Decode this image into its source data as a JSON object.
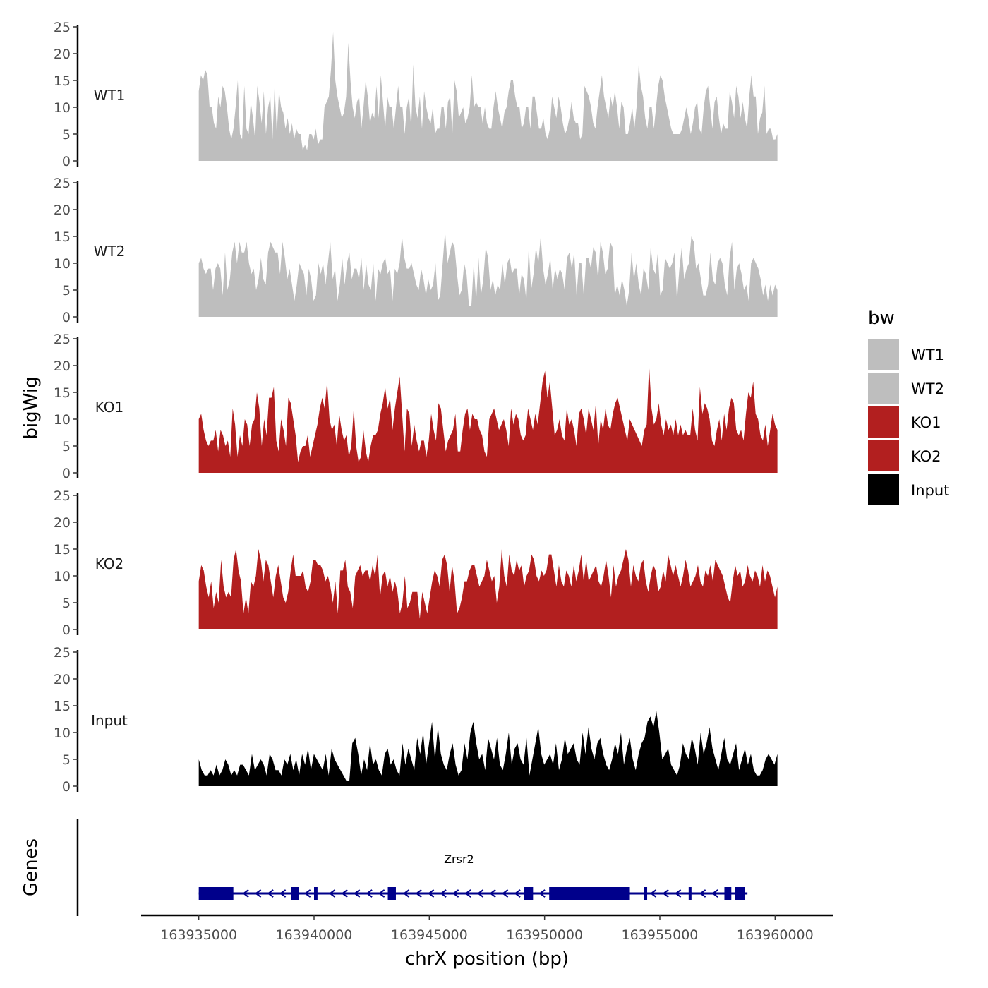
{
  "chart_data": {
    "type": "area",
    "chromosome": "chrX",
    "ylabel": "bigWig",
    "xlabel": "chrX position (bp)",
    "genes_label": "Genes",
    "ylim": [
      0,
      25
    ],
    "yticks": [
      "0",
      "5",
      "10",
      "15",
      "20",
      "25"
    ],
    "xlim": [
      163932500,
      163962500
    ],
    "xticks": [
      {
        "value": 163935000,
        "label": "163935000"
      },
      {
        "value": 163940000,
        "label": "163940000"
      },
      {
        "value": 163945000,
        "label": "163945000"
      },
      {
        "value": 163950000,
        "label": "163950000"
      },
      {
        "value": 163955000,
        "label": "163955000"
      },
      {
        "value": 163960000,
        "label": "163960000"
      }
    ],
    "region": [
      163935000,
      163960100
    ],
    "legend": {
      "title": "bw",
      "entries": [
        {
          "label": "WT1",
          "color": "#bebebe"
        },
        {
          "label": "WT2",
          "color": "#bebebe"
        },
        {
          "label": "KO1",
          "color": "#b21f1f"
        },
        {
          "label": "KO2",
          "color": "#b21f1f"
        },
        {
          "label": "Input",
          "color": "#000000"
        }
      ]
    },
    "series": [
      {
        "name": "WT1",
        "color": "#bebebe",
        "values": [
          13,
          16,
          15,
          17,
          16,
          10,
          10,
          7,
          6,
          12,
          10,
          14,
          13,
          10,
          6,
          4,
          6,
          10,
          15,
          5,
          4,
          14,
          6,
          5,
          11,
          8,
          4,
          14,
          11,
          7,
          13,
          5,
          10,
          12,
          4,
          14,
          5,
          13,
          10,
          9,
          6,
          8,
          5,
          7,
          4,
          6,
          5,
          5,
          2,
          3,
          2,
          5,
          5,
          4,
          6,
          3,
          4,
          4,
          10,
          11,
          12,
          17,
          24,
          15,
          12,
          10,
          8,
          9,
          12,
          22,
          15,
          10,
          8,
          11,
          12,
          6,
          10,
          15,
          12,
          7,
          9,
          8,
          14,
          8,
          16,
          11,
          6,
          12,
          10,
          10,
          6,
          10,
          14,
          10,
          10,
          5,
          10,
          12,
          6,
          18,
          10,
          8,
          12,
          6,
          13,
          10,
          8,
          7,
          10,
          5,
          6,
          6,
          10,
          10,
          6,
          11,
          12,
          5,
          15,
          13,
          8,
          9,
          10,
          7,
          8,
          10,
          16,
          10,
          11,
          10,
          10,
          7,
          10,
          7,
          6,
          6,
          10,
          13,
          10,
          8,
          6,
          9,
          10,
          13,
          15,
          15,
          12,
          10,
          10,
          6,
          7,
          10,
          10,
          6,
          12,
          12,
          9,
          6,
          6,
          8,
          5,
          4,
          6,
          12,
          10,
          8,
          12,
          10,
          7,
          5,
          6,
          8,
          11,
          8,
          7,
          7,
          4,
          5,
          14,
          13,
          12,
          10,
          7,
          6,
          10,
          13,
          16,
          12,
          10,
          8,
          12,
          10,
          13,
          10,
          6,
          11,
          10,
          5,
          5,
          7,
          10,
          6,
          10,
          18,
          14,
          12,
          8,
          6,
          10,
          10,
          6,
          10,
          14,
          16,
          15,
          12,
          10,
          8,
          6,
          5,
          5,
          5,
          5,
          6,
          8,
          10,
          8,
          5,
          7,
          10,
          11,
          6,
          5,
          10,
          13,
          14,
          10,
          6,
          11,
          12,
          8,
          5,
          7,
          6,
          6,
          13,
          11,
          8,
          14,
          12,
          8,
          11,
          8,
          6,
          12,
          16,
          12,
          12,
          5,
          8,
          9,
          14,
          5,
          6,
          6,
          4,
          4,
          5
        ]
      },
      {
        "name": "WT2",
        "color": "#bebebe",
        "values": [
          10,
          11,
          9,
          8,
          9,
          9,
          5,
          9,
          10,
          9,
          4,
          12,
          5,
          7,
          12,
          14,
          10,
          14,
          12,
          12,
          14,
          10,
          8,
          9,
          5,
          7,
          11,
          7,
          6,
          12,
          14,
          13,
          12,
          12,
          8,
          14,
          11,
          7,
          9,
          6,
          3,
          6,
          10,
          9,
          8,
          4,
          9,
          7,
          3,
          4,
          10,
          8,
          10,
          6,
          10,
          14,
          7,
          9,
          3,
          6,
          11,
          6,
          10,
          12,
          7,
          9,
          9,
          7,
          11,
          5,
          10,
          6,
          5,
          10,
          3,
          9,
          8,
          10,
          11,
          8,
          9,
          3,
          9,
          8,
          10,
          15,
          11,
          9,
          9,
          10,
          8,
          6,
          5,
          9,
          7,
          4,
          7,
          5,
          6,
          10,
          3,
          4,
          10,
          16,
          10,
          12,
          14,
          13,
          8,
          4,
          5,
          10,
          8,
          2,
          2,
          10,
          3,
          11,
          4,
          7,
          13,
          11,
          5,
          7,
          4,
          6,
          5,
          10,
          6,
          10,
          11,
          8,
          9,
          9,
          4,
          8,
          7,
          3,
          13,
          5,
          8,
          13,
          10,
          15,
          9,
          6,
          8,
          11,
          5,
          9,
          7,
          9,
          8,
          5,
          11,
          12,
          9,
          12,
          4,
          10,
          10,
          4,
          11,
          11,
          9,
          13,
          12,
          7,
          14,
          12,
          8,
          9,
          14,
          13,
          4,
          6,
          4,
          7,
          5,
          2,
          5,
          12,
          7,
          10,
          6,
          4,
          9,
          8,
          5,
          13,
          9,
          8,
          12,
          4,
          5,
          11,
          10,
          9,
          10,
          12,
          3,
          9,
          13,
          7,
          9,
          10,
          15,
          14,
          9,
          10,
          7,
          4,
          4,
          6,
          12,
          7,
          6,
          10,
          11,
          10,
          6,
          4,
          11,
          14,
          5,
          9,
          10,
          8,
          5,
          6,
          3,
          10,
          11,
          10,
          9,
          7,
          4,
          6,
          3,
          6,
          4,
          6,
          5
        ]
      },
      {
        "name": "KO1",
        "color": "#b21f1f",
        "values": [
          10,
          11,
          8,
          6,
          5,
          6,
          6,
          8,
          4,
          8,
          7,
          5,
          6,
          3,
          12,
          9,
          3,
          7,
          5,
          10,
          9,
          5,
          9,
          10,
          15,
          12,
          5,
          10,
          7,
          14,
          14,
          16,
          6,
          4,
          10,
          8,
          5,
          14,
          13,
          10,
          7,
          2,
          4,
          5,
          5,
          7,
          3,
          5,
          7,
          9,
          12,
          14,
          12,
          17,
          10,
          8,
          9,
          5,
          11,
          8,
          6,
          7,
          3,
          5,
          12,
          5,
          2,
          3,
          8,
          4,
          2,
          5,
          7,
          7,
          8,
          11,
          13,
          16,
          12,
          14,
          8,
          12,
          15,
          18,
          11,
          4,
          12,
          11,
          5,
          9,
          6,
          4,
          6,
          6,
          3,
          6,
          11,
          8,
          6,
          13,
          12,
          8,
          4,
          6,
          7,
          8,
          11,
          4,
          4,
          8,
          11,
          12,
          8,
          11,
          10,
          10,
          8,
          7,
          4,
          3,
          10,
          11,
          12,
          10,
          8,
          9,
          10,
          8,
          5,
          12,
          9,
          11,
          10,
          7,
          6,
          7,
          12,
          10,
          8,
          11,
          9,
          13,
          17,
          19,
          14,
          17,
          12,
          7,
          8,
          10,
          7,
          6,
          12,
          9,
          10,
          8,
          5,
          11,
          12,
          10,
          7,
          12,
          10,
          8,
          13,
          5,
          10,
          8,
          12,
          9,
          8,
          11,
          13,
          14,
          12,
          10,
          8,
          6,
          10,
          9,
          8,
          7,
          6,
          5,
          8,
          9,
          20,
          12,
          9,
          10,
          13,
          9,
          7,
          10,
          8,
          9,
          7,
          10,
          7,
          9,
          7,
          8,
          7,
          7,
          12,
          8,
          6,
          16,
          11,
          13,
          12,
          10,
          6,
          5,
          8,
          10,
          6,
          11,
          8,
          12,
          14,
          13,
          8,
          7,
          8,
          6,
          11,
          15,
          14,
          17,
          11,
          10,
          7,
          6,
          9,
          5,
          8,
          11,
          9,
          8
        ]
      },
      {
        "name": "KO2",
        "color": "#b21f1f",
        "values": [
          9,
          12,
          11,
          8,
          6,
          9,
          4,
          7,
          5,
          13,
          8,
          6,
          7,
          6,
          13,
          15,
          11,
          9,
          3,
          6,
          3,
          9,
          8,
          10,
          15,
          13,
          9,
          13,
          12,
          9,
          6,
          10,
          12,
          9,
          6,
          5,
          7,
          11,
          14,
          10,
          10,
          10,
          11,
          8,
          7,
          9,
          13,
          13,
          12,
          12,
          11,
          9,
          10,
          8,
          5,
          9,
          3,
          11,
          11,
          13,
          8,
          7,
          4,
          10,
          11,
          12,
          10,
          11,
          11,
          9,
          12,
          10,
          14,
          6,
          10,
          11,
          8,
          10,
          7,
          9,
          7,
          3,
          5,
          10,
          4,
          5,
          7,
          7,
          7,
          2,
          7,
          5,
          3,
          6,
          9,
          11,
          10,
          8,
          13,
          14,
          12,
          7,
          12,
          9,
          3,
          4,
          6,
          9,
          9,
          11,
          12,
          12,
          10,
          8,
          9,
          10,
          13,
          11,
          9,
          10,
          5,
          8,
          15,
          10,
          8,
          14,
          11,
          10,
          13,
          11,
          12,
          8,
          10,
          11,
          14,
          13,
          10,
          9,
          11,
          10,
          11,
          14,
          14,
          11,
          8,
          12,
          9,
          8,
          11,
          10,
          8,
          12,
          9,
          11,
          14,
          9,
          13,
          9,
          10,
          11,
          12,
          9,
          8,
          10,
          13,
          10,
          6,
          12,
          8,
          10,
          11,
          13,
          15,
          13,
          8,
          12,
          10,
          9,
          12,
          13,
          9,
          7,
          10,
          12,
          11,
          7,
          8,
          11,
          9,
          14,
          12,
          10,
          12,
          10,
          8,
          10,
          13,
          11,
          8,
          9,
          10,
          12,
          9,
          8,
          11,
          10,
          12,
          9,
          13,
          12,
          11,
          10,
          8,
          6,
          5,
          9,
          12,
          10,
          11,
          8,
          9,
          12,
          10,
          9,
          11,
          10,
          8,
          12,
          9,
          11,
          10,
          8,
          6,
          8
        ]
      },
      {
        "name": "Input",
        "color": "#000000",
        "values": [
          5,
          3,
          2,
          2,
          3,
          2,
          4,
          2,
          3,
          5,
          4,
          2,
          3,
          2,
          4,
          4,
          3,
          2,
          6,
          3,
          4,
          5,
          4,
          2,
          6,
          5,
          3,
          3,
          2,
          5,
          4,
          6,
          3,
          5,
          2,
          6,
          4,
          7,
          3,
          6,
          5,
          4,
          3,
          6,
          2,
          7,
          5,
          4,
          3,
          2,
          1,
          1,
          8,
          9,
          6,
          2,
          5,
          3,
          8,
          4,
          5,
          3,
          2,
          6,
          7,
          4,
          5,
          3,
          2,
          8,
          4,
          7,
          5,
          3,
          9,
          6,
          10,
          4,
          8,
          12,
          5,
          11,
          6,
          4,
          3,
          6,
          8,
          4,
          2,
          3,
          8,
          5,
          10,
          12,
          8,
          5,
          6,
          3,
          9,
          7,
          5,
          9,
          4,
          3,
          6,
          10,
          4,
          7,
          8,
          5,
          4,
          9,
          2,
          5,
          8,
          11,
          6,
          4,
          5,
          6,
          4,
          8,
          3,
          5,
          9,
          6,
          7,
          8,
          5,
          4,
          10,
          6,
          11,
          7,
          5,
          8,
          9,
          6,
          4,
          3,
          5,
          8,
          6,
          10,
          4,
          7,
          9,
          5,
          3,
          6,
          8,
          9,
          12,
          13,
          11,
          14,
          10,
          5,
          6,
          7,
          4,
          3,
          2,
          4,
          8,
          6,
          5,
          9,
          7,
          4,
          10,
          6,
          8,
          11,
          7,
          5,
          3,
          6,
          9,
          5,
          4,
          6,
          8,
          3,
          5,
          7,
          4,
          6,
          3,
          2,
          2,
          3,
          5,
          6,
          5,
          4,
          6
        ]
      }
    ],
    "genes": [
      {
        "name": "Zrsr2",
        "strand": "-",
        "start": 163935000,
        "end": 163958800,
        "color": "#00008b",
        "exons": [
          [
            163935000,
            163936500
          ],
          [
            163939000,
            163939350
          ],
          [
            163940000,
            163940150
          ],
          [
            163943200,
            163943550
          ],
          [
            163949100,
            163949500
          ],
          [
            163950200,
            163953700
          ],
          [
            163954300,
            163954450
          ],
          [
            163956250,
            163956350
          ],
          [
            163957800,
            163958100
          ],
          [
            163958250,
            163958700
          ]
        ]
      }
    ]
  }
}
